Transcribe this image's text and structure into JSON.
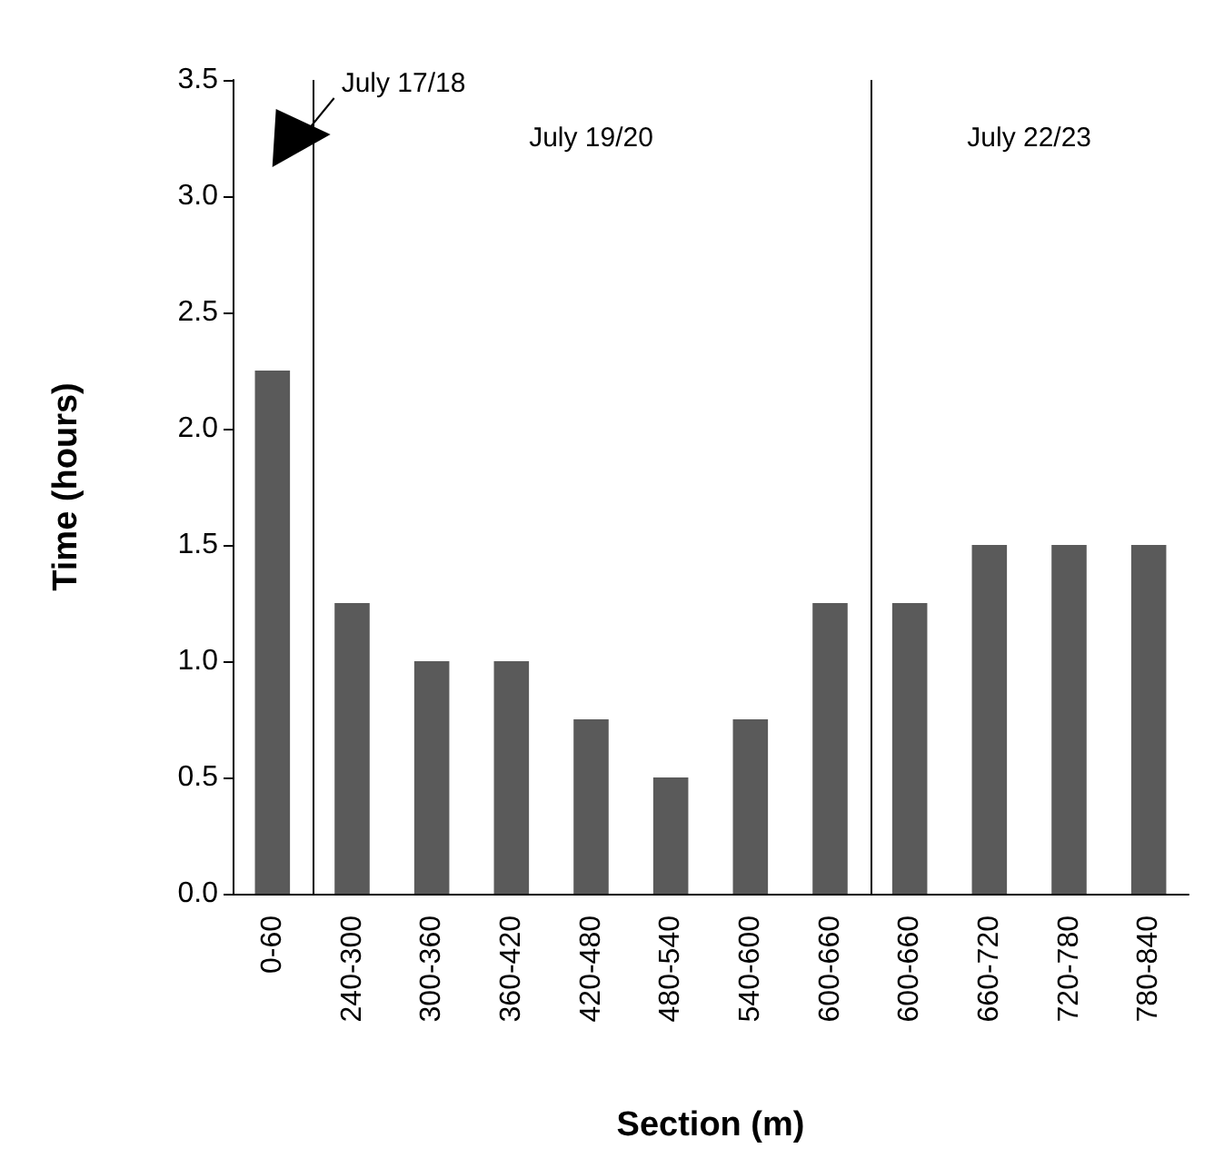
{
  "chart_data": {
    "type": "bar",
    "xlabel": "Section (m)",
    "ylabel": "Time (hours)",
    "categories": [
      "0-60",
      "240-300",
      "300-360",
      "360-420",
      "420-480",
      "480-540",
      "540-600",
      "600-660",
      "600-660",
      "660-720",
      "720-780",
      "780-840"
    ],
    "values": [
      2.25,
      1.25,
      1.0,
      1.0,
      0.75,
      0.5,
      0.75,
      1.25,
      1.25,
      1.5,
      1.5,
      1.5
    ],
    "color": "#5a5a5a",
    "ylim": [
      0,
      3.5
    ],
    "yticks": [
      {
        "value": 0,
        "label": "0.0"
      },
      0.5,
      {
        "value": 1,
        "label": "1.0"
      },
      1.5,
      {
        "value": 2,
        "label": "2.0"
      },
      2.5,
      {
        "value": 3,
        "label": "3.0"
      },
      3.5
    ],
    "grid": false,
    "annotations": [
      "July 17/18",
      "July 19/20",
      "July 22/23"
    ]
  }
}
